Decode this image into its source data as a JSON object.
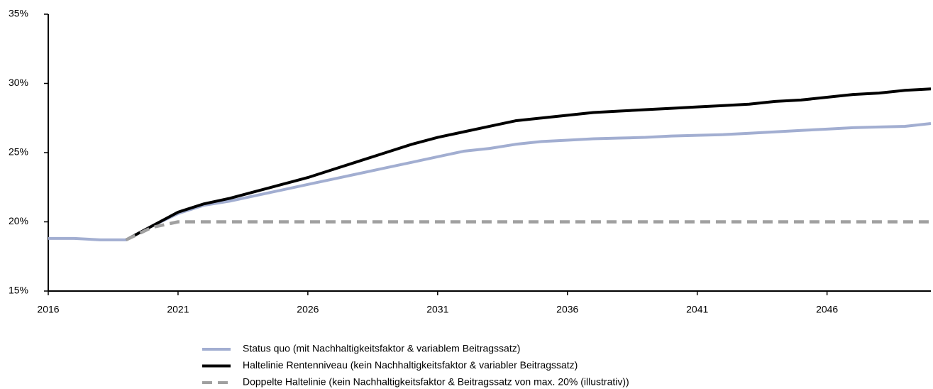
{
  "chart_data": {
    "type": "line",
    "x": [
      2016,
      2017,
      2018,
      2019,
      2020,
      2021,
      2022,
      2023,
      2024,
      2025,
      2026,
      2027,
      2028,
      2029,
      2030,
      2031,
      2032,
      2033,
      2034,
      2035,
      2036,
      2037,
      2038,
      2039,
      2040,
      2041,
      2042,
      2043,
      2044,
      2045,
      2046,
      2047,
      2048,
      2049,
      2050
    ],
    "series": [
      {
        "name": "Status quo (mit Nachhaltigkeitsfaktor & variablem Beitragssatz)",
        "color": "#a2aed1",
        "dash": false,
        "values": [
          18.8,
          18.8,
          18.7,
          18.7,
          19.7,
          20.6,
          21.2,
          21.5,
          21.9,
          22.3,
          22.7,
          23.1,
          23.5,
          23.9,
          24.3,
          24.7,
          25.1,
          25.3,
          25.6,
          25.8,
          25.9,
          26.0,
          26.05,
          26.1,
          26.2,
          26.25,
          26.3,
          26.4,
          26.5,
          26.6,
          26.7,
          26.8,
          26.85,
          26.9,
          27.1
        ]
      },
      {
        "name": "Haltelinie Rentenniveau (kein Nachhaltigkeitsfaktor & variabler Beitragssatz)",
        "color": "#000000",
        "dash": false,
        "values": [
          null,
          null,
          null,
          18.7,
          19.7,
          20.7,
          21.3,
          21.7,
          22.2,
          22.7,
          23.2,
          23.8,
          24.4,
          25.0,
          25.6,
          26.1,
          26.5,
          26.9,
          27.3,
          27.5,
          27.7,
          27.9,
          28.0,
          28.1,
          28.2,
          28.3,
          28.4,
          28.5,
          28.7,
          28.8,
          29.0,
          29.2,
          29.3,
          29.5,
          29.6
        ]
      },
      {
        "name": "Doppelte Haltelinie (kein Nachhaltigkeitsfaktor & Beitragssatz von max. 20% (illustrativ))",
        "color": "#a0a0a0",
        "dash": true,
        "values": [
          null,
          null,
          null,
          18.7,
          19.6,
          20,
          20,
          20,
          20,
          20,
          20,
          20,
          20,
          20,
          20,
          20,
          20,
          20,
          20,
          20,
          20,
          20,
          20,
          20,
          20,
          20,
          20,
          20,
          20,
          20,
          20,
          20,
          20,
          20,
          20
        ]
      }
    ],
    "xlim": [
      2016,
      2050
    ],
    "xticks": [
      2016,
      2021,
      2026,
      2031,
      2036,
      2041,
      2046
    ],
    "ylim": [
      15,
      35
    ],
    "yticks": [
      {
        "value": 15,
        "label": "15%"
      },
      {
        "value": 20,
        "label": "20%"
      },
      {
        "value": 25,
        "label": "25%"
      },
      {
        "value": 30,
        "label": "30%"
      },
      {
        "value": 35,
        "label": "35%"
      }
    ],
    "legend": "bottom"
  }
}
